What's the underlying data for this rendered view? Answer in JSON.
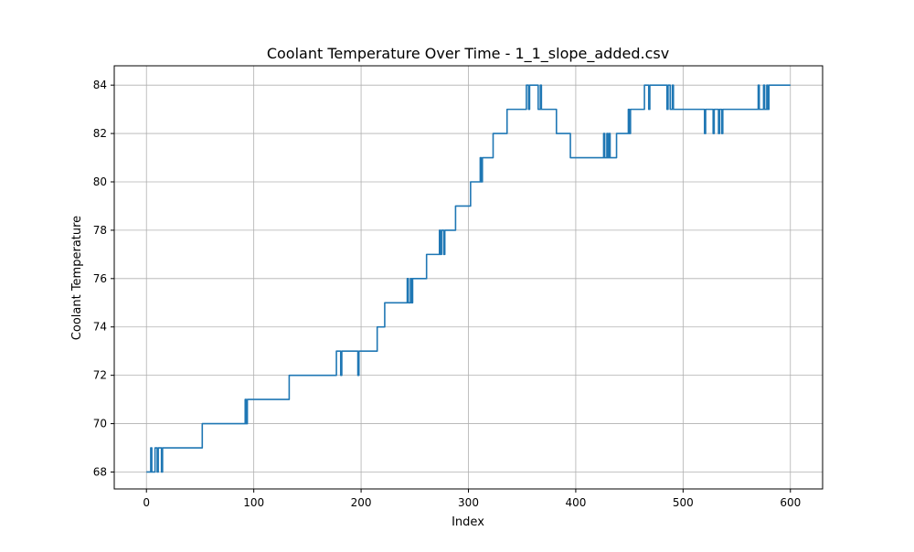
{
  "chart_data": {
    "type": "line",
    "title": "Coolant Temperature Over Time - 1_1_slope_added.csv",
    "xlabel": "Index",
    "ylabel": "Coolant Temperature",
    "xlim": [
      -30,
      630
    ],
    "ylim": [
      67.3,
      84.8
    ],
    "xticks": [
      0,
      100,
      200,
      300,
      400,
      500,
      600
    ],
    "yticks": [
      68,
      70,
      72,
      74,
      76,
      78,
      80,
      82,
      84
    ],
    "grid": true,
    "legend": "none",
    "series": [
      {
        "color": "#1f77b4",
        "points": [
          [
            0,
            68
          ],
          [
            4,
            68
          ],
          [
            4,
            69
          ],
          [
            5,
            69
          ],
          [
            5,
            68
          ],
          [
            8,
            68
          ],
          [
            8,
            69
          ],
          [
            10,
            69
          ],
          [
            10,
            68
          ],
          [
            11,
            68
          ],
          [
            11,
            69
          ],
          [
            14,
            69
          ],
          [
            14,
            68
          ],
          [
            15,
            68
          ],
          [
            15,
            69
          ],
          [
            52,
            69
          ],
          [
            52,
            70
          ],
          [
            92,
            70
          ],
          [
            92,
            71
          ],
          [
            93,
            71
          ],
          [
            93,
            70
          ],
          [
            94,
            70
          ],
          [
            94,
            71
          ],
          [
            133,
            71
          ],
          [
            133,
            72
          ],
          [
            177,
            72
          ],
          [
            177,
            73
          ],
          [
            181,
            73
          ],
          [
            181,
            72
          ],
          [
            182,
            72
          ],
          [
            182,
            73
          ],
          [
            197,
            73
          ],
          [
            197,
            72
          ],
          [
            198,
            72
          ],
          [
            198,
            73
          ],
          [
            215,
            73
          ],
          [
            215,
            74
          ],
          [
            222,
            74
          ],
          [
            222,
            75
          ],
          [
            243,
            75
          ],
          [
            243,
            76
          ],
          [
            244,
            76
          ],
          [
            244,
            75
          ],
          [
            246,
            75
          ],
          [
            246,
            76
          ],
          [
            247,
            76
          ],
          [
            247,
            75
          ],
          [
            248,
            75
          ],
          [
            248,
            76
          ],
          [
            261,
            76
          ],
          [
            261,
            77
          ],
          [
            273,
            77
          ],
          [
            273,
            78
          ],
          [
            274,
            78
          ],
          [
            274,
            77
          ],
          [
            275,
            77
          ],
          [
            275,
            78
          ],
          [
            277,
            78
          ],
          [
            277,
            77
          ],
          [
            278,
            77
          ],
          [
            278,
            78
          ],
          [
            288,
            78
          ],
          [
            288,
            79
          ],
          [
            302,
            79
          ],
          [
            302,
            80
          ],
          [
            311,
            80
          ],
          [
            311,
            81
          ],
          [
            312,
            81
          ],
          [
            312,
            80
          ],
          [
            313,
            80
          ],
          [
            313,
            81
          ],
          [
            323,
            81
          ],
          [
            323,
            82
          ],
          [
            336,
            82
          ],
          [
            336,
            83
          ],
          [
            354,
            83
          ],
          [
            354,
            84
          ],
          [
            356,
            84
          ],
          [
            356,
            83
          ],
          [
            357,
            83
          ],
          [
            357,
            84
          ],
          [
            365,
            84
          ],
          [
            365,
            83
          ],
          [
            367,
            83
          ],
          [
            367,
            84
          ],
          [
            368,
            84
          ],
          [
            368,
            83
          ],
          [
            382,
            83
          ],
          [
            382,
            82
          ],
          [
            395,
            82
          ],
          [
            395,
            81
          ],
          [
            426,
            81
          ],
          [
            426,
            82
          ],
          [
            427,
            82
          ],
          [
            427,
            81
          ],
          [
            429,
            81
          ],
          [
            429,
            82
          ],
          [
            430,
            82
          ],
          [
            430,
            81
          ],
          [
            431,
            81
          ],
          [
            431,
            82
          ],
          [
            432,
            82
          ],
          [
            432,
            81
          ],
          [
            438,
            81
          ],
          [
            438,
            82
          ],
          [
            449,
            82
          ],
          [
            449,
            83
          ],
          [
            450,
            83
          ],
          [
            450,
            82
          ],
          [
            451,
            82
          ],
          [
            451,
            83
          ],
          [
            464,
            83
          ],
          [
            464,
            84
          ],
          [
            468,
            84
          ],
          [
            468,
            83
          ],
          [
            469,
            83
          ],
          [
            469,
            84
          ],
          [
            485,
            84
          ],
          [
            485,
            83
          ],
          [
            486,
            83
          ],
          [
            486,
            84
          ],
          [
            488,
            84
          ],
          [
            488,
            83
          ],
          [
            490,
            83
          ],
          [
            490,
            84
          ],
          [
            491,
            84
          ],
          [
            491,
            83
          ],
          [
            520,
            83
          ],
          [
            520,
            82
          ],
          [
            521,
            82
          ],
          [
            521,
            83
          ],
          [
            528,
            83
          ],
          [
            528,
            82
          ],
          [
            529,
            82
          ],
          [
            529,
            83
          ],
          [
            533,
            83
          ],
          [
            533,
            82
          ],
          [
            534,
            82
          ],
          [
            534,
            83
          ],
          [
            536,
            83
          ],
          [
            536,
            82
          ],
          [
            537,
            82
          ],
          [
            537,
            83
          ],
          [
            570,
            83
          ],
          [
            570,
            84
          ],
          [
            571,
            84
          ],
          [
            571,
            83
          ],
          [
            575,
            83
          ],
          [
            575,
            84
          ],
          [
            576,
            84
          ],
          [
            576,
            83
          ],
          [
            578,
            83
          ],
          [
            578,
            84
          ],
          [
            579,
            84
          ],
          [
            579,
            83
          ],
          [
            580,
            83
          ],
          [
            580,
            84
          ],
          [
            600,
            84
          ]
        ]
      }
    ]
  }
}
